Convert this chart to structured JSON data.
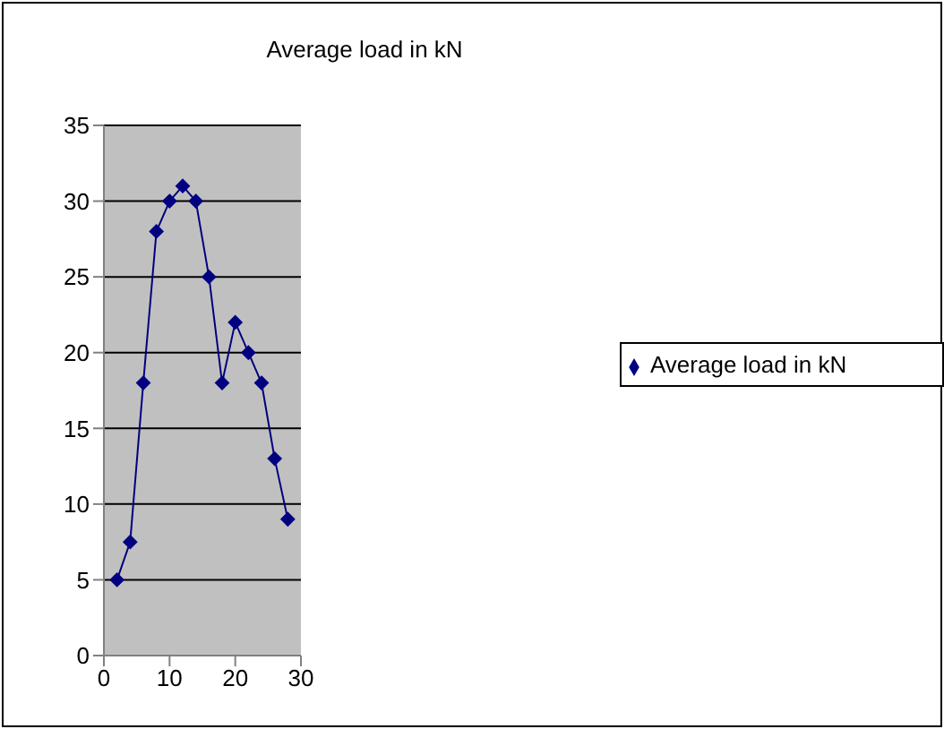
{
  "chart_data": {
    "type": "line",
    "title": "Average load in kN",
    "x": [
      2,
      4,
      6,
      8,
      10,
      12,
      14,
      16,
      18,
      20,
      22,
      24,
      26,
      28
    ],
    "series": [
      {
        "name": "Average load in kN",
        "color": "#000080",
        "values": [
          5,
          7.5,
          18,
          28,
          30,
          31,
          30,
          25,
          18,
          22,
          20,
          18,
          13,
          9
        ]
      }
    ],
    "xlim": [
      0,
      30
    ],
    "xticks": [
      0,
      10,
      20,
      30
    ],
    "ylim": [
      0,
      35
    ],
    "yticks": [
      0,
      5,
      10,
      15,
      20,
      25,
      30,
      35
    ],
    "grid": "y",
    "legend": "right",
    "marker": "diamond",
    "line_style": "solid"
  }
}
